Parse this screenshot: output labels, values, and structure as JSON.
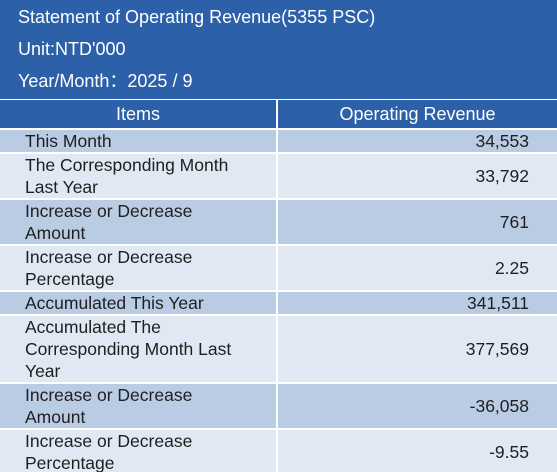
{
  "header": {
    "title": "Statement of Operating Revenue(5355 PSC)",
    "unit": "Unit:NTD'000",
    "period": "Year/Month：2025 / 9"
  },
  "table": {
    "columns": [
      "Items",
      "Operating Revenue"
    ],
    "rows": [
      {
        "item": "This Month",
        "value": "34,553"
      },
      {
        "item": "The Corresponding Month Last Year",
        "value": "33,792"
      },
      {
        "item": "Increase or Decrease Amount",
        "value": "761"
      },
      {
        "item": "Increase or Decrease Percentage",
        "value": "2.25"
      },
      {
        "item": "Accumulated This Year",
        "value": "341,511"
      },
      {
        "item": "Accumulated The Corresponding Month Last Year",
        "value": "377,569"
      },
      {
        "item": "Increase or Decrease Amount",
        "value": "-36,058"
      },
      {
        "item": "Increase or Decrease Percentage",
        "value": "-9.55"
      }
    ]
  },
  "colors": {
    "header_blue": "#2c60a8",
    "row_shade": "#b9cce4",
    "row_light": "#dfe8f3"
  }
}
